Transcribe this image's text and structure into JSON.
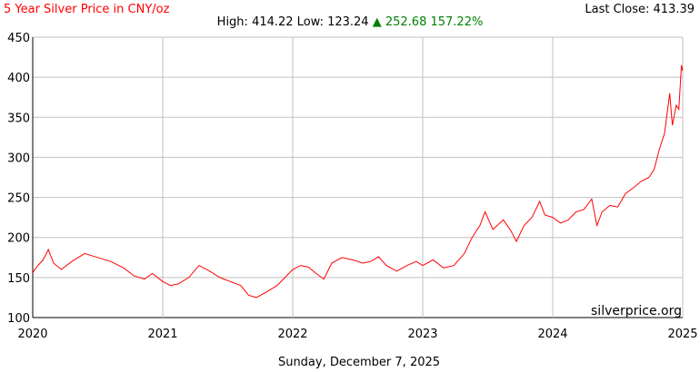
{
  "header": {
    "title": "5 Year Silver Price in CNY/oz",
    "last_close": "Last Close: 413.39",
    "high_low": "High: 414.22 Low: 123.24",
    "change_arrow": "▲",
    "change": "252.68 157.22%"
  },
  "footer": {
    "date": "Sunday, December 7, 2025"
  },
  "watermark": "silverprice.org",
  "colors": {
    "line": "#ff0000",
    "title": "#ff0000",
    "change": "#008000",
    "grid": "#c0c0c0"
  },
  "chart_data": {
    "type": "line",
    "title": "5 Year Silver Price in CNY/oz",
    "xlabel": "",
    "ylabel": "",
    "xlim": [
      2020,
      2025
    ],
    "ylim": [
      100,
      450
    ],
    "x_ticks": [
      "2020",
      "2021",
      "2022",
      "2023",
      "2024",
      "2025"
    ],
    "y_ticks": [
      100,
      150,
      200,
      250,
      300,
      350,
      400,
      450
    ],
    "grid": true,
    "series": [
      {
        "x": [
          2020.0,
          2020.04,
          2020.08,
          2020.12,
          2020.16,
          2020.22,
          2020.3,
          2020.4,
          2020.5,
          2020.6,
          2020.7,
          2020.78,
          2020.86,
          2020.92,
          2021.0,
          2021.06,
          2021.12,
          2021.2,
          2021.28,
          2021.36,
          2021.44,
          2021.52,
          2021.6,
          2021.66,
          2021.72,
          2021.8,
          2021.88,
          2021.94,
          2022.0,
          2022.06,
          2022.12,
          2022.18,
          2022.24,
          2022.3,
          2022.38,
          2022.46,
          2022.54,
          2022.6,
          2022.66,
          2022.72,
          2022.8,
          2022.88,
          2022.95,
          2023.0,
          2023.08,
          2023.16,
          2023.24,
          2023.32,
          2023.38,
          2023.44,
          2023.48,
          2023.54,
          2023.62,
          2023.68,
          2023.72,
          2023.78,
          2023.84,
          2023.9,
          2023.94,
          2024.0,
          2024.06,
          2024.12,
          2024.18,
          2024.24,
          2024.3,
          2024.34,
          2024.38,
          2024.44,
          2024.5,
          2024.56,
          2024.62,
          2024.68,
          2024.74,
          2024.78,
          2024.82,
          2024.86,
          2024.88,
          2024.9,
          2024.92,
          2024.95,
          2024.97,
          2024.99,
          2025.0
        ],
        "y": [
          156,
          165,
          172,
          185,
          168,
          160,
          170,
          180,
          175,
          170,
          162,
          152,
          148,
          155,
          145,
          140,
          142,
          150,
          165,
          158,
          150,
          145,
          140,
          128,
          125,
          132,
          140,
          150,
          160,
          165,
          163,
          155,
          148,
          168,
          175,
          172,
          168,
          170,
          176,
          165,
          158,
          165,
          170,
          165,
          172,
          162,
          165,
          180,
          200,
          215,
          232,
          210,
          222,
          208,
          195,
          215,
          225,
          245,
          228,
          225,
          218,
          222,
          232,
          235,
          248,
          215,
          232,
          240,
          238,
          255,
          262,
          270,
          275,
          285,
          310,
          330,
          355,
          380,
          340,
          365,
          360,
          415,
          408
        ]
      }
    ]
  }
}
